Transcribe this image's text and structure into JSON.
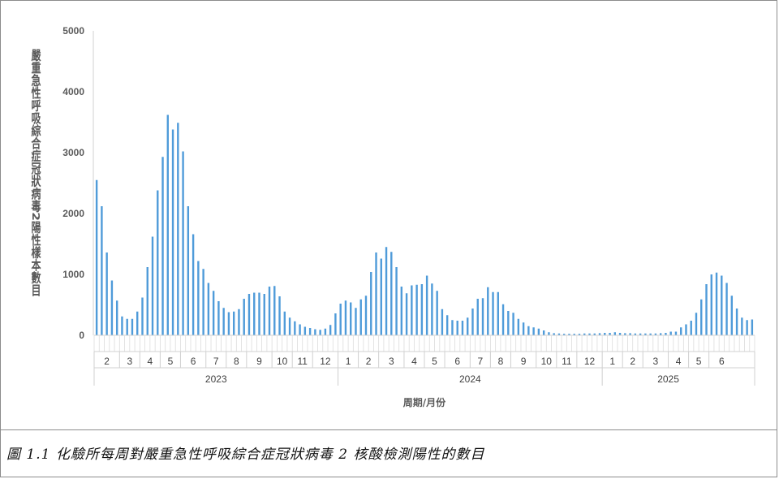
{
  "caption": "圖 1.1  化驗所每周對嚴重急性呼吸綜合症冠狀病毒 2 核酸檢測陽性的數目",
  "chart_data": {
    "type": "bar",
    "title": "",
    "xlabel": "周期/月份",
    "ylabel": "嚴重急性呼吸綜合症冠狀病毒2陽性樣本數目",
    "ylim": [
      0,
      5000
    ],
    "yticks": [
      0,
      1000,
      2000,
      3000,
      4000,
      5000
    ],
    "grid": false,
    "bar_color": "#4f9bd9",
    "axis_color": "#d0d0d0",
    "values": [
      2550,
      2120,
      1360,
      900,
      570,
      310,
      270,
      270,
      390,
      620,
      1120,
      1620,
      2380,
      2930,
      3620,
      3380,
      3490,
      3020,
      2120,
      1660,
      1220,
      1090,
      860,
      730,
      560,
      450,
      380,
      390,
      430,
      600,
      680,
      700,
      700,
      680,
      800,
      810,
      640,
      390,
      290,
      230,
      180,
      140,
      120,
      100,
      90,
      110,
      170,
      360,
      520,
      570,
      540,
      450,
      590,
      650,
      1040,
      1360,
      1260,
      1450,
      1370,
      1120,
      800,
      690,
      820,
      830,
      840,
      980,
      850,
      730,
      430,
      330,
      250,
      240,
      240,
      290,
      440,
      600,
      610,
      790,
      710,
      710,
      510,
      400,
      370,
      270,
      210,
      150,
      130,
      110,
      80,
      50,
      35,
      30,
      25,
      25,
      25,
      25,
      30,
      30,
      30,
      35,
      40,
      40,
      50,
      40,
      35,
      35,
      30,
      30,
      30,
      30,
      30,
      35,
      40,
      60,
      60,
      130,
      180,
      240,
      370,
      590,
      840,
      1000,
      1030,
      980,
      860,
      650,
      440,
      290,
      250,
      260
    ],
    "month_labels": [
      {
        "label": "2",
        "start": 0,
        "end": 5
      },
      {
        "label": "3",
        "start": 5,
        "end": 9
      },
      {
        "label": "4",
        "start": 9,
        "end": 13
      },
      {
        "label": "5",
        "start": 13,
        "end": 17
      },
      {
        "label": "6",
        "start": 17,
        "end": 22
      },
      {
        "label": "7",
        "start": 22,
        "end": 26
      },
      {
        "label": "8",
        "start": 26,
        "end": 30
      },
      {
        "label": "9",
        "start": 30,
        "end": 35
      },
      {
        "label": "10",
        "start": 35,
        "end": 39
      },
      {
        "label": "11",
        "start": 39,
        "end": 43
      },
      {
        "label": "12",
        "start": 43,
        "end": 48
      },
      {
        "label": "1",
        "start": 48,
        "end": 52
      },
      {
        "label": "2",
        "start": 52,
        "end": 56
      },
      {
        "label": "3",
        "start": 56,
        "end": 61
      },
      {
        "label": "4",
        "start": 61,
        "end": 65
      },
      {
        "label": "5",
        "start": 65,
        "end": 69
      },
      {
        "label": "6",
        "start": 69,
        "end": 74
      },
      {
        "label": "7",
        "start": 74,
        "end": 78
      },
      {
        "label": "8",
        "start": 78,
        "end": 82
      },
      {
        "label": "9",
        "start": 82,
        "end": 87
      },
      {
        "label": "10",
        "start": 87,
        "end": 91
      },
      {
        "label": "11",
        "start": 91,
        "end": 95
      },
      {
        "label": "12",
        "start": 95,
        "end": 100
      },
      {
        "label": "1",
        "start": 100,
        "end": 104
      },
      {
        "label": "2",
        "start": 104,
        "end": 108
      },
      {
        "label": "3",
        "start": 108,
        "end": 113
      },
      {
        "label": "4",
        "start": 113,
        "end": 117
      },
      {
        "label": "5",
        "start": 117,
        "end": 121
      },
      {
        "label": "6",
        "start": 121,
        "end": 126
      }
    ],
    "year_labels": [
      {
        "label": "2023",
        "start": 0,
        "end": 48
      },
      {
        "label": "2024",
        "start": 48,
        "end": 100
      },
      {
        "label": "2025",
        "start": 100,
        "end": 126
      }
    ]
  }
}
